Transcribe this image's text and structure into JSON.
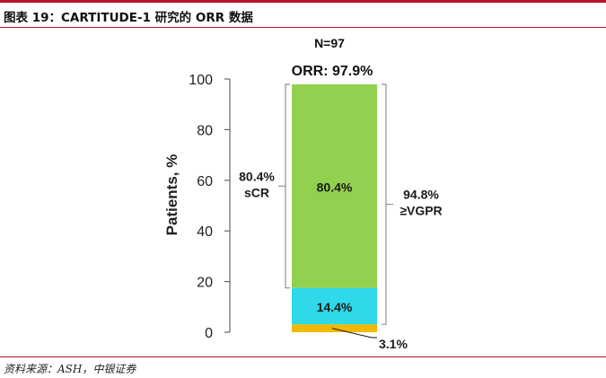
{
  "figure_title": "图表 19：CARTITUDE-1 研究的 ORR 数据",
  "source": "资料来源：ASH，中银证券",
  "colors": {
    "brand_rule": "#b5122c",
    "segment_scr": "#92d050",
    "segment_vgpr": "#2fd9e9",
    "segment_pr": "#f5b800",
    "bracket": "#9a9a9a"
  },
  "chart_data": {
    "type": "bar",
    "stacked": true,
    "header_n": "N=97",
    "orr_label": "ORR: 97.9%",
    "ylabel": "Patients, %",
    "ylim": [
      0,
      100
    ],
    "yticks": [
      "0",
      "20",
      "40",
      "60",
      "80",
      "100"
    ],
    "segments": [
      {
        "value": 3.1,
        "label": "3.1%",
        "color": "#f5b800"
      },
      {
        "value": 14.4,
        "label": "14.4%",
        "color": "#2fd9e9"
      },
      {
        "value": 80.4,
        "label": "80.4%",
        "color": "#92d050"
      }
    ],
    "brackets": [
      {
        "from": 17.5,
        "to": 97.9,
        "side": "left",
        "line1": "80.4%",
        "line2": "sCR"
      },
      {
        "from": 3.1,
        "to": 97.9,
        "side": "right",
        "line1": "94.8%",
        "line2": "≥VGPR"
      }
    ]
  }
}
